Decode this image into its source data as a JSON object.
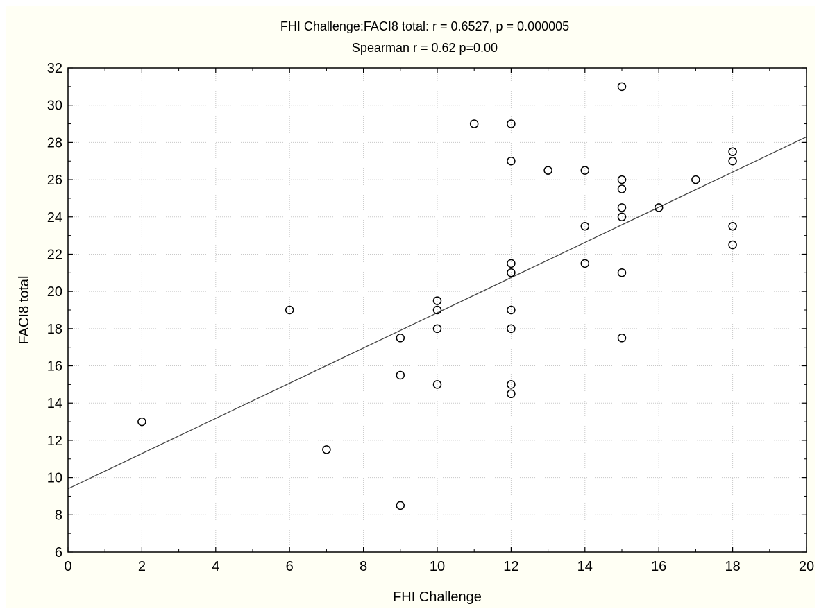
{
  "chart_data": {
    "type": "scatter",
    "title": "FHI Challenge:FACI8 total:   r = 0.6527, p = 0.000005",
    "subtitle": "Spearman r = 0.62 p=0.00",
    "xlabel": "FHI Challenge",
    "ylabel": "FACI8 total",
    "xlim": [
      0,
      20
    ],
    "ylim": [
      6,
      32
    ],
    "xticks": [
      "0",
      "2",
      "4",
      "6",
      "8",
      "10",
      "12",
      "14",
      "16",
      "18",
      "20"
    ],
    "yticks": [
      "6",
      "8",
      "10",
      "12",
      "14",
      "16",
      "18",
      "20",
      "22",
      "24",
      "26",
      "28",
      "30",
      "32"
    ],
    "grid": true,
    "regression_line": {
      "intercept": 9.4,
      "slope": 0.945
    },
    "points": [
      {
        "x": 2,
        "y": 13
      },
      {
        "x": 6,
        "y": 19
      },
      {
        "x": 7,
        "y": 11.5
      },
      {
        "x": 9,
        "y": 17.5
      },
      {
        "x": 9,
        "y": 15.5
      },
      {
        "x": 9,
        "y": 8.5
      },
      {
        "x": 10,
        "y": 19.5
      },
      {
        "x": 10,
        "y": 19
      },
      {
        "x": 10,
        "y": 18
      },
      {
        "x": 10,
        "y": 15
      },
      {
        "x": 11,
        "y": 29
      },
      {
        "x": 12,
        "y": 29
      },
      {
        "x": 12,
        "y": 27
      },
      {
        "x": 12,
        "y": 21.5
      },
      {
        "x": 12,
        "y": 21
      },
      {
        "x": 12,
        "y": 19
      },
      {
        "x": 12,
        "y": 18
      },
      {
        "x": 12,
        "y": 15
      },
      {
        "x": 12,
        "y": 14.5
      },
      {
        "x": 13,
        "y": 26.5
      },
      {
        "x": 14,
        "y": 26.5
      },
      {
        "x": 14,
        "y": 23.5
      },
      {
        "x": 14,
        "y": 21.5
      },
      {
        "x": 15,
        "y": 31
      },
      {
        "x": 15,
        "y": 26
      },
      {
        "x": 15,
        "y": 25.5
      },
      {
        "x": 15,
        "y": 24.5
      },
      {
        "x": 15,
        "y": 24
      },
      {
        "x": 15,
        "y": 21
      },
      {
        "x": 15,
        "y": 17.5
      },
      {
        "x": 16,
        "y": 24.5
      },
      {
        "x": 17,
        "y": 26
      },
      {
        "x": 18,
        "y": 27.5
      },
      {
        "x": 18,
        "y": 27
      },
      {
        "x": 18,
        "y": 23.5
      },
      {
        "x": 18,
        "y": 22.5
      }
    ]
  }
}
